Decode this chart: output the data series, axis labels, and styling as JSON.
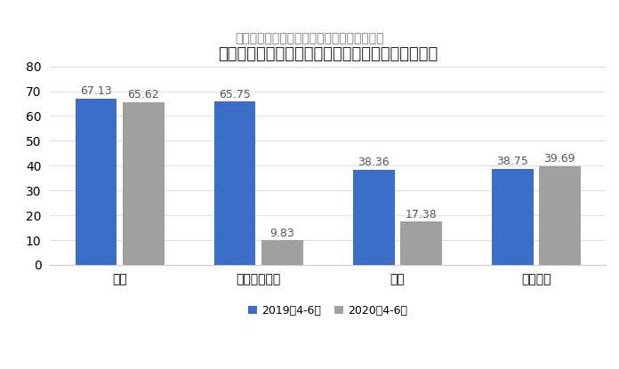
{
  "title": "コロナでテーマパークと映画の売り上げが急減した",
  "subtitle": "ディズニーの部門別売上高（単位：億ドル）",
  "categories": [
    "放送",
    "テーマパーク",
    "映画",
    "動画配信"
  ],
  "series_2019": [
    67.13,
    65.75,
    38.36,
    38.75
  ],
  "series_2020": [
    65.62,
    9.83,
    17.38,
    39.69
  ],
  "color_2019": "#3A6EC8",
  "color_2020": "#A0A0A0",
  "legend_2019": "2019年4-6月",
  "legend_2020": "2020年4-6月",
  "ylim": [
    0,
    80
  ],
  "yticks": [
    0,
    10,
    20,
    30,
    40,
    50,
    60,
    70,
    80
  ],
  "background_color": "#FFFFFF",
  "title_fontsize": 13,
  "subtitle_fontsize": 10,
  "tick_fontsize": 10,
  "bar_label_fontsize": 9
}
